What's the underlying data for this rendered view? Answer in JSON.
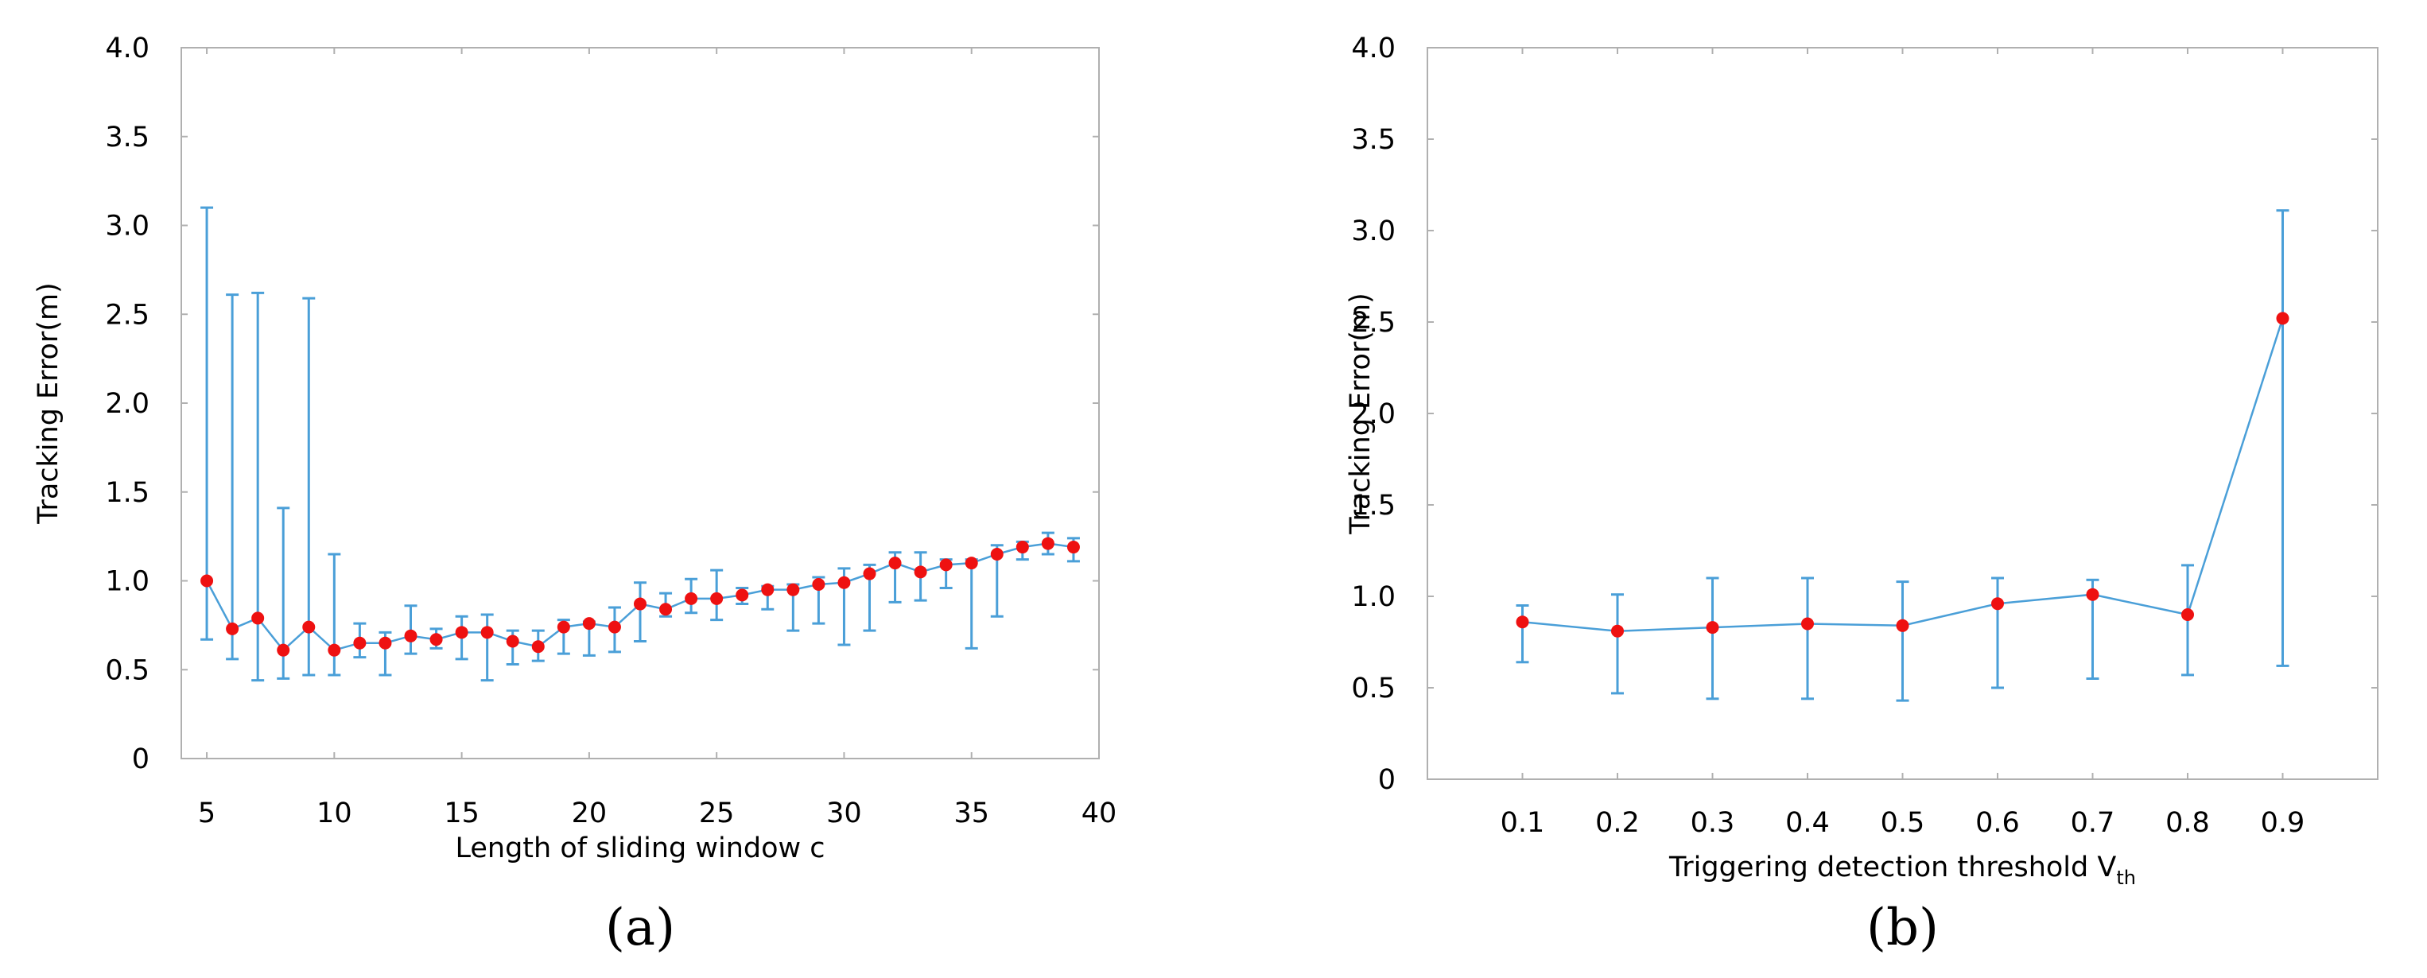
{
  "chart_data": [
    {
      "type": "line",
      "panel_label": "(a)",
      "xlabel": "Length of sliding window c",
      "ylabel": "Tracking Error(m)",
      "xlim": [
        4,
        40
      ],
      "ylim": [
        0,
        4.0
      ],
      "x_ticks": [
        5,
        10,
        15,
        20,
        25,
        30,
        35,
        40
      ],
      "y_ticks": [
        0,
        0.5,
        1.0,
        1.5,
        2.0,
        2.5,
        3.0,
        3.5,
        4.0
      ],
      "y_tick_labels": [
        "0",
        "0.5",
        "1.0",
        "1.5",
        "2.0",
        "2.5",
        "3.0",
        "3.5",
        "4.0"
      ],
      "grid": false,
      "series": [
        {
          "name": "Tracking Error",
          "x": [
            5,
            6,
            7,
            8,
            9,
            10,
            11,
            12,
            13,
            14,
            15,
            16,
            17,
            18,
            19,
            20,
            21,
            22,
            23,
            24,
            25,
            26,
            27,
            28,
            29,
            30,
            31,
            32,
            33,
            34,
            35,
            36,
            37,
            38,
            39
          ],
          "y": [
            1.0,
            0.73,
            0.79,
            0.61,
            0.74,
            0.61,
            0.65,
            0.65,
            0.69,
            0.67,
            0.71,
            0.71,
            0.66,
            0.63,
            0.74,
            0.76,
            0.74,
            0.87,
            0.84,
            0.9,
            0.9,
            0.92,
            0.95,
            0.95,
            0.98,
            0.99,
            1.04,
            1.1,
            1.05,
            1.09,
            1.1,
            1.15,
            1.19,
            1.21,
            1.19
          ],
          "y_low": [
            0.67,
            0.56,
            0.44,
            0.45,
            0.47,
            0.47,
            0.57,
            0.47,
            0.59,
            0.62,
            0.56,
            0.44,
            0.53,
            0.55,
            0.59,
            0.58,
            0.6,
            0.66,
            0.8,
            0.82,
            0.78,
            0.87,
            0.84,
            0.72,
            0.76,
            0.64,
            0.72,
            0.88,
            0.89,
            0.96,
            0.62,
            0.8,
            1.12,
            1.15,
            1.11
          ],
          "y_high": [
            3.1,
            2.61,
            2.62,
            1.41,
            2.59,
            1.15,
            0.76,
            0.71,
            0.86,
            0.73,
            0.8,
            0.81,
            0.72,
            0.72,
            0.78,
            0.77,
            0.85,
            0.99,
            0.93,
            1.01,
            1.06,
            0.96,
            0.97,
            0.98,
            1.02,
            1.07,
            1.09,
            1.16,
            1.16,
            1.12,
            1.12,
            1.2,
            1.22,
            1.27,
            1.24
          ]
        }
      ]
    },
    {
      "type": "line",
      "panel_label": "(b)",
      "xlabel": "Triggering detection threshold V",
      "xlabel_subscript": "th",
      "ylabel": "Tracking Error(m)",
      "xlim": [
        0,
        1.0
      ],
      "ylim": [
        0,
        4.0
      ],
      "x_ticks": [
        0.1,
        0.2,
        0.3,
        0.4,
        0.5,
        0.6,
        0.7,
        0.8,
        0.9
      ],
      "x_tick_labels": [
        "0.1",
        "0.2",
        "0.3",
        "0.4",
        "0.5",
        "0.6",
        "0.7",
        "0.8",
        "0.9"
      ],
      "y_ticks": [
        0,
        0.5,
        1.0,
        1.5,
        2.0,
        2.5,
        3.0,
        3.5,
        4.0
      ],
      "y_tick_labels": [
        "0",
        "0.5",
        "1.0",
        "1.5",
        "2.0",
        "2.5",
        "3.0",
        "3.5",
        "4.0"
      ],
      "grid": false,
      "series": [
        {
          "name": "Tracking Error",
          "x": [
            0.1,
            0.2,
            0.3,
            0.4,
            0.5,
            0.6,
            0.7,
            0.8,
            0.9
          ],
          "y": [
            0.86,
            0.81,
            0.83,
            0.85,
            0.84,
            0.96,
            1.01,
            0.9,
            2.52
          ],
          "y_low": [
            0.64,
            0.47,
            0.44,
            0.44,
            0.43,
            0.5,
            0.55,
            0.57,
            0.62
          ],
          "y_high": [
            0.95,
            1.01,
            1.1,
            1.1,
            1.08,
            1.1,
            1.09,
            1.17,
            3.11
          ]
        }
      ]
    }
  ]
}
